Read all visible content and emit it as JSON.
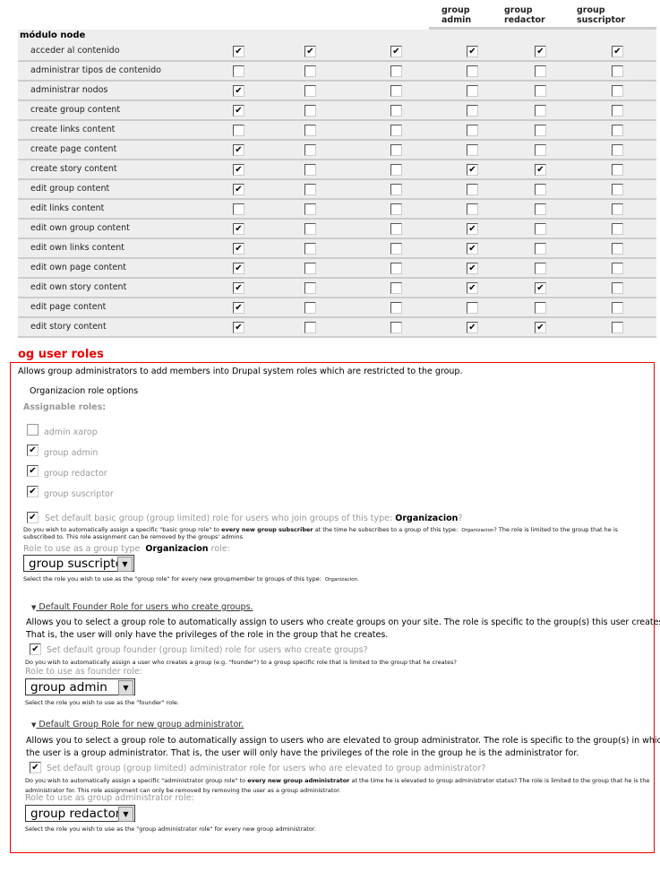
{
  "columns": [
    "",
    "",
    "",
    "group admin",
    "group redactor",
    "group suscriptor"
  ],
  "column_headers": [
    {
      "line1": "group",
      "line2": "admin"
    },
    {
      "line1": "group",
      "line2": "redactor"
    },
    {
      "line1": "group",
      "line2": "suscriptor"
    }
  ],
  "module": "módulo node",
  "permissions": [
    {
      "label": "acceder al contenido",
      "checks": [
        true,
        true,
        true,
        true,
        true,
        true
      ]
    },
    {
      "label": "administrar tipos de contenido",
      "checks": [
        false,
        false,
        false,
        false,
        false,
        false
      ]
    },
    {
      "label": "administrar nodos",
      "checks": [
        true,
        false,
        false,
        false,
        false,
        false
      ]
    },
    {
      "label": "create group content",
      "checks": [
        true,
        false,
        false,
        false,
        false,
        false
      ]
    },
    {
      "label": "create links content",
      "checks": [
        false,
        false,
        false,
        false,
        false,
        false
      ]
    },
    {
      "label": "create page content",
      "checks": [
        true,
        false,
        false,
        false,
        false,
        false
      ]
    },
    {
      "label": "create story content",
      "checks": [
        true,
        false,
        false,
        true,
        true,
        false
      ]
    },
    {
      "label": "edit group content",
      "checks": [
        true,
        false,
        false,
        false,
        false,
        false
      ]
    },
    {
      "label": "edit links content",
      "checks": [
        false,
        false,
        false,
        false,
        false,
        false
      ]
    },
    {
      "label": "edit own group content",
      "checks": [
        true,
        false,
        false,
        true,
        false,
        false
      ]
    },
    {
      "label": "edit own links content",
      "checks": [
        true,
        false,
        false,
        true,
        false,
        false
      ]
    },
    {
      "label": "edit own page content",
      "checks": [
        true,
        false,
        false,
        true,
        false,
        false
      ]
    },
    {
      "label": "edit own story content",
      "checks": [
        true,
        false,
        false,
        true,
        true,
        false
      ]
    },
    {
      "label": "edit page content",
      "checks": [
        true,
        false,
        false,
        false,
        false,
        false
      ]
    },
    {
      "label": "edit story content",
      "checks": [
        true,
        false,
        false,
        true,
        true,
        false
      ]
    }
  ],
  "og": {
    "title": "og user roles",
    "description": "Allows group administrators to add members into Drupal system roles which are restricted to the group.",
    "options_title": "Organizacion role options",
    "assignable_label": "Assignable roles:",
    "roles": [
      {
        "label": "admin xarop",
        "checked": false
      },
      {
        "label": "group admin",
        "checked": true
      },
      {
        "label": "group redactor",
        "checked": true
      },
      {
        "label": "group suscriptor",
        "checked": true
      }
    ],
    "basic": {
      "checked": true,
      "label_pre": "Set default basic group (group limited) role for users who join groups of this type:",
      "label_type": "Organizacion",
      "label_post": "?",
      "help1_pre": "Do you wish to automatically assign a specific \"basic group role\" to ",
      "help1_bold": "every new group subscriber",
      "help1_post": " at the time he subscribes to a group of this type:",
      "help1_type": "Organizacion",
      "help1_end": "? The role is limited to the group that he is",
      "help2": "subscribed to. This role assignment can be removed by the groups' admins",
      "role_label_pre": "Role to use as a group type",
      "role_label_type": "Organizacion",
      "role_label_post": "role:",
      "selected": "group suscriptor",
      "select_help": "Select the role you wish to use as the \"group role\" for every new groupmember to groups of this type:",
      "select_help_type": "Organizacion."
    },
    "founder": {
      "heading": "Default Founder Role for users who create groups.",
      "para1": "Allows you to select a group role to automatically assign to users who create groups on your site. The role is specific to the group(s) this user creates.",
      "para2": "That is, the user will only have the privileges of the role in the group that he creates.",
      "checked": true,
      "label": "Set default group founder (group limited) role for users who create groups?",
      "help": "Do you wish to automatically assign a user who creates a group (e.g. \"founder\") to a group specific role that is limited to the group that he creates?",
      "role_label": "Role to use as founder role:",
      "selected": "group admin",
      "select_help": "Select the role you wish to use as the \"founder\" role."
    },
    "admin": {
      "heading": "Default Group Role for new group administrator.",
      "para1": "Allows you to select a group role to automatically assign to users who are elevated to group administrator. The role is specific to the group(s) in which",
      "para2": "the user is a group administrator. That is, the user will only have the privileges of the role in the group he is the administrator for.",
      "checked": true,
      "label": "Set default group (group limited) administrator role for users who are elevated to group administrator?",
      "help1_pre": "Do you wish to automatically assign a specific \"administrator group role\" to ",
      "help1_bold": "every new group administrator",
      "help1_post": " at the time he is elevated to group administrator status? The role is limited to the group that he is the",
      "help2": "administrator for. This role assignment can only be removed by removing the user as a group administrator.",
      "role_label": "Role to use as group administrator role:",
      "selected": "group redactor",
      "select_help": "Select the role you wish to use as the \"group administrator role\" for every new group administrator."
    }
  },
  "colors": {
    "accent": "#ee0000",
    "row_bg": "#eeeeee",
    "muted": "#999999"
  }
}
